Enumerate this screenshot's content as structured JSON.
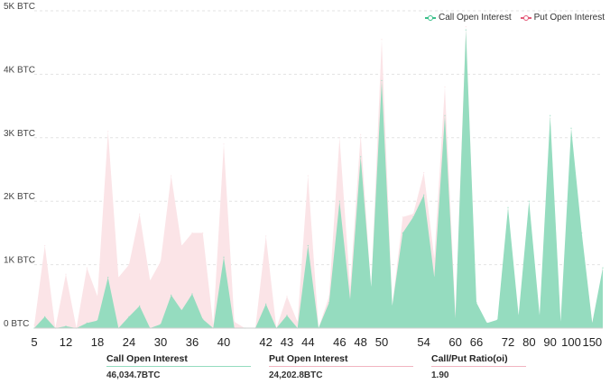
{
  "legend": {
    "call_label": "Call Open Interest",
    "put_label": "Put  Open Interest"
  },
  "colors": {
    "call": "#3cc08b",
    "call_fill": "#95dcbf",
    "put": "#e45a78",
    "put_fill": "#fbe4e7",
    "grid": "#e3e3e3"
  },
  "stats": {
    "call": {
      "label": "Call Open Interest",
      "value": "46,034.7BTC"
    },
    "put": {
      "label": "Put Open Interest",
      "value": "24,202.8BTC"
    },
    "ratio": {
      "label": "Call/Put Ratio(oi)",
      "value": "1.90"
    }
  },
  "chart_data": {
    "type": "area",
    "y_unit": "BTC",
    "ylim": [
      0,
      5000
    ],
    "yticks": [
      "0 BTC",
      "1K BTC",
      "2K BTC",
      "3K BTC",
      "4K BTC",
      "5K BTC"
    ],
    "grid": true,
    "legend_position": "top-right",
    "x_tick_labels": [
      {
        "label": "5",
        "at": 0
      },
      {
        "label": "12",
        "at": 3
      },
      {
        "label": "18",
        "at": 6
      },
      {
        "label": "24",
        "at": 9
      },
      {
        "label": "30",
        "at": 12
      },
      {
        "label": "36",
        "at": 15
      },
      {
        "label": "40",
        "at": 18
      },
      {
        "label": "42",
        "at": 22
      },
      {
        "label": "43",
        "at": 24
      },
      {
        "label": "44",
        "at": 26
      },
      {
        "label": "46",
        "at": 29
      },
      {
        "label": "48",
        "at": 31
      },
      {
        "label": "50",
        "at": 33
      },
      {
        "label": "54",
        "at": 37
      },
      {
        "label": "60",
        "at": 40
      },
      {
        "label": "66",
        "at": 42
      },
      {
        "label": "72",
        "at": 45
      },
      {
        "label": "80",
        "at": 47
      },
      {
        "label": "90",
        "at": 49
      },
      {
        "label": "100",
        "at": 51
      },
      {
        "label": "150",
        "at": 53
      }
    ],
    "points": 55,
    "series": [
      {
        "name": "Call Open Interest",
        "values": [
          0,
          180,
          0,
          30,
          0,
          80,
          120,
          800,
          0,
          180,
          350,
          0,
          60,
          520,
          280,
          540,
          140,
          0,
          1120,
          0,
          0,
          0,
          380,
          0,
          200,
          0,
          1300,
          0,
          400,
          2000,
          450,
          2700,
          650,
          3900,
          350,
          1500,
          1750,
          2100,
          800,
          3350,
          150,
          4700,
          400,
          80,
          130,
          1900,
          200,
          2000,
          200,
          3350,
          100,
          3150,
          1500,
          80,
          950
        ]
      },
      {
        "name": "Put  Open Interest",
        "values": [
          50,
          1300,
          0,
          850,
          0,
          950,
          500,
          3100,
          800,
          1000,
          1800,
          750,
          1050,
          2400,
          1300,
          1500,
          1500,
          50,
          2900,
          100,
          0,
          0,
          1450,
          0,
          500,
          100,
          2400,
          0,
          500,
          3000,
          650,
          3050,
          600,
          4550,
          350,
          1750,
          1800,
          2450,
          1100,
          3800,
          200,
          4750,
          300,
          50,
          100,
          1850,
          150,
          1850,
          100,
          3300,
          50,
          3050,
          1450,
          80,
          900
        ]
      }
    ]
  }
}
